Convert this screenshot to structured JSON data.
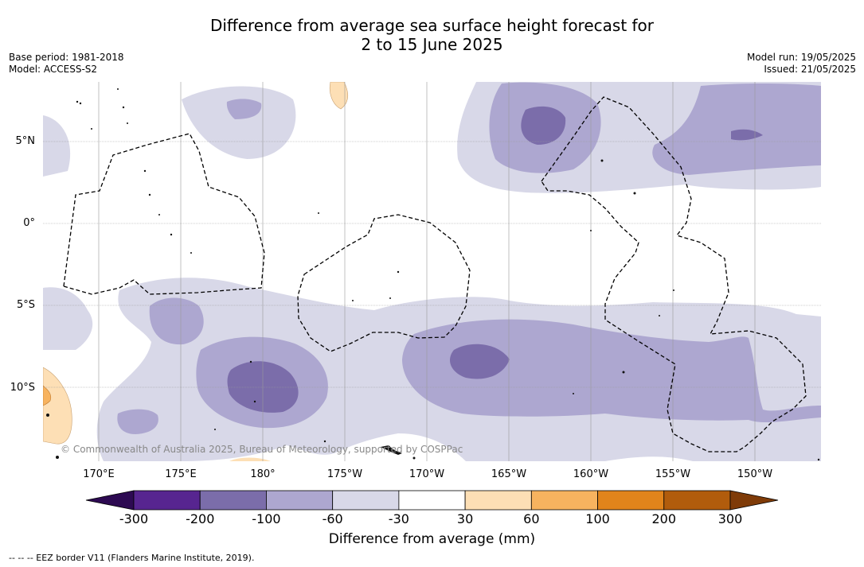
{
  "title": {
    "line1": "Difference from average sea surface height forecast for",
    "line2": "2 to 15 June 2025"
  },
  "meta_left": {
    "base_period": "Base period: 1981-2018",
    "model": "Model: ACCESS-S2"
  },
  "meta_right": {
    "model_run": "Model run: 19/05/2025",
    "issued": "Issued: 21/05/2025"
  },
  "map": {
    "longitude_labels": [
      "170°E",
      "175°E",
      "180°",
      "175°W",
      "170°W",
      "165°W",
      "160°W",
      "155°W",
      "150°W"
    ],
    "latitude_labels": [
      "5°N",
      "0°",
      "5°S",
      "10°S"
    ],
    "copyright": "© Commonwealth of Australia 2025, Bureau of Meteorology, supported by COSPPac"
  },
  "colorbar": {
    "title": "Difference from average (mm)",
    "tick_labels": [
      "-300",
      "-200",
      "-100",
      "-60",
      "-30",
      "30",
      "60",
      "100",
      "200",
      "300"
    ],
    "colors": [
      "#2d0a52",
      "#572590",
      "#7b6daa",
      "#ada7d0",
      "#d8d8e8",
      "#ffffff",
      "#fddfb5",
      "#f7b35f",
      "#e1841b",
      "#b15c0c",
      "#7f3b08"
    ]
  },
  "footnote": "--  --  -- EEZ border V11 (Flanders Marine Institute, 2019)."
}
